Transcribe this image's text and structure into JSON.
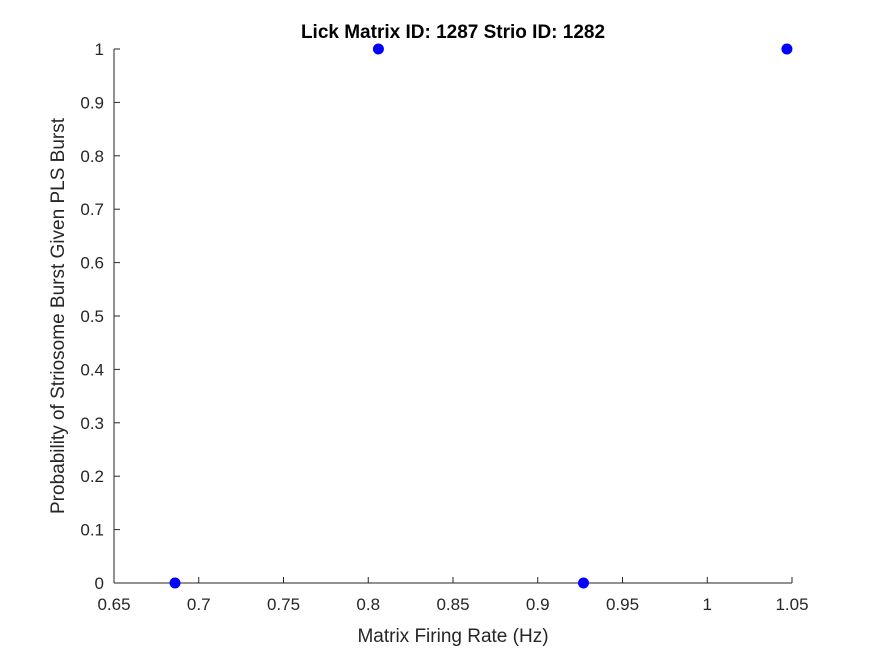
{
  "chart_data": {
    "type": "scatter",
    "title": "Lick Matrix ID: 1287 Strio ID: 1282",
    "xlabel": "Matrix Firing Rate (Hz)",
    "ylabel": "Probability of Striosome Burst Given PLS Burst",
    "xlim": [
      0.65,
      1.05
    ],
    "ylim": [
      0,
      1
    ],
    "xticks": [
      0.65,
      0.7,
      0.75,
      0.8,
      0.85,
      0.9,
      0.95,
      1,
      1.05
    ],
    "xtick_labels": [
      "0.65",
      "0.7",
      "0.75",
      "0.8",
      "0.85",
      "0.9",
      "0.95",
      "1",
      "1.05"
    ],
    "yticks": [
      0,
      0.1,
      0.2,
      0.3,
      0.4,
      0.5,
      0.6,
      0.7,
      0.8,
      0.9,
      1
    ],
    "ytick_labels": [
      "0",
      "0.1",
      "0.2",
      "0.3",
      "0.4",
      "0.5",
      "0.6",
      "0.7",
      "0.8",
      "0.9",
      "1"
    ],
    "grid": false,
    "series": [
      {
        "color": "#0000ff",
        "points": [
          {
            "x": 0.686,
            "y": 0
          },
          {
            "x": 0.806,
            "y": 1
          },
          {
            "x": 0.927,
            "y": 0
          },
          {
            "x": 1.047,
            "y": 1
          }
        ]
      }
    ]
  }
}
